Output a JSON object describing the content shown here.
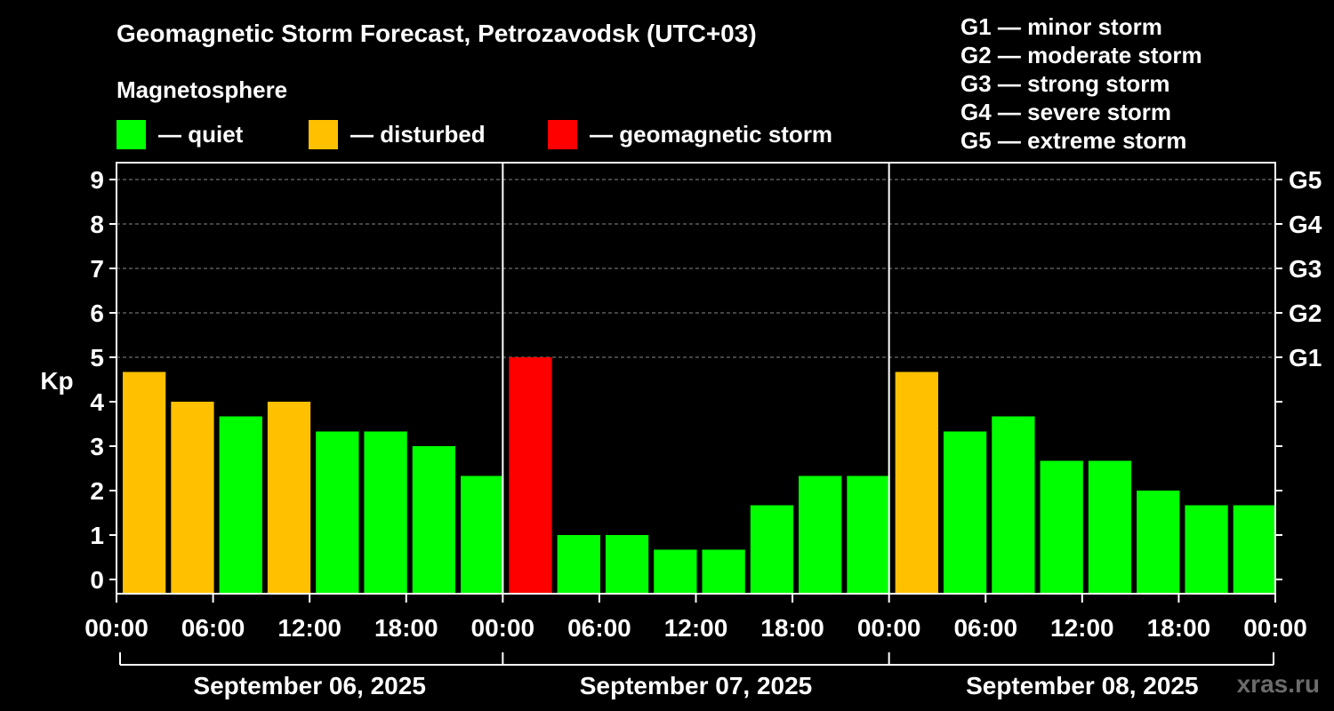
{
  "header": {
    "title": "Geomagnetic Storm Forecast, Petrozavodsk (UTC+03)",
    "subtitle": "Magnetosphere"
  },
  "legend": {
    "items": [
      {
        "label": "— quiet",
        "color": "#00ff00"
      },
      {
        "label": "— disturbed",
        "color": "#ffc000"
      },
      {
        "label": "— geomagnetic storm",
        "color": "#ff0000"
      }
    ]
  },
  "g_scale_legend": [
    "G1 — minor storm",
    "G2 — moderate storm",
    "G3 — strong storm",
    "G4 — severe storm",
    "G5 — extreme storm"
  ],
  "watermark": "xras.ru",
  "chart_data": {
    "type": "bar",
    "ylabel": "Kp",
    "ylim": [
      0,
      9
    ],
    "yticks": [
      "0",
      "1",
      "2",
      "3",
      "4",
      "5",
      "6",
      "7",
      "8",
      "9"
    ],
    "right_ticks": [
      {
        "value": 5,
        "label": "G1"
      },
      {
        "value": 6,
        "label": "G2"
      },
      {
        "value": 7,
        "label": "G3"
      },
      {
        "value": 8,
        "label": "G4"
      },
      {
        "value": 9,
        "label": "G5"
      }
    ],
    "grid": true,
    "x_tick_labels": [
      "00:00",
      "06:00",
      "12:00",
      "18:00",
      "00:00",
      "06:00",
      "12:00",
      "18:00",
      "00:00",
      "06:00",
      "12:00",
      "18:00",
      "00:00"
    ],
    "days": [
      "September 06, 2025",
      "September 07, 2025",
      "September 08, 2025"
    ],
    "colors": {
      "quiet": "#00ff00",
      "disturbed": "#ffc000",
      "storm": "#ff0000"
    },
    "values": [
      4.67,
      4.0,
      3.67,
      4.0,
      3.33,
      3.33,
      3.0,
      2.33,
      5.0,
      1.0,
      1.0,
      0.67,
      0.67,
      1.67,
      2.33,
      2.33,
      4.67,
      3.33,
      3.67,
      2.67,
      2.67,
      2.0,
      1.67,
      1.67
    ],
    "levels": [
      "disturbed",
      "disturbed",
      "quiet",
      "disturbed",
      "quiet",
      "quiet",
      "quiet",
      "quiet",
      "storm",
      "quiet",
      "quiet",
      "quiet",
      "quiet",
      "quiet",
      "quiet",
      "quiet",
      "disturbed",
      "quiet",
      "quiet",
      "quiet",
      "quiet",
      "quiet",
      "quiet",
      "quiet"
    ]
  }
}
